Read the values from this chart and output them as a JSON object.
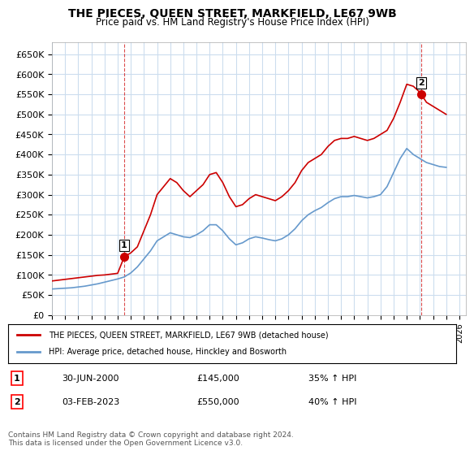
{
  "title": "THE PIECES, QUEEN STREET, MARKFIELD, LE67 9WB",
  "subtitle": "Price paid vs. HM Land Registry's House Price Index (HPI)",
  "red_label": "THE PIECES, QUEEN STREET, MARKFIELD, LE67 9WB (detached house)",
  "blue_label": "HPI: Average price, detached house, Hinckley and Bosworth",
  "annotation1_label": "1",
  "annotation1_date": "30-JUN-2000",
  "annotation1_price": "£145,000",
  "annotation1_hpi": "35% ↑ HPI",
  "annotation2_label": "2",
  "annotation2_date": "03-FEB-2023",
  "annotation2_price": "£550,000",
  "annotation2_hpi": "40% ↑ HPI",
  "footer": "Contains HM Land Registry data © Crown copyright and database right 2024.\nThis data is licensed under the Open Government Licence v3.0.",
  "ylim": [
    0,
    680000
  ],
  "yticks": [
    0,
    50000,
    100000,
    150000,
    200000,
    250000,
    300000,
    350000,
    400000,
    450000,
    500000,
    550000,
    600000,
    650000
  ],
  "ytick_labels": [
    "£0",
    "£50K",
    "£100K",
    "£150K",
    "£200K",
    "£250K",
    "£300K",
    "£350K",
    "£400K",
    "£450K",
    "£500K",
    "£550K",
    "£600K",
    "£650K"
  ],
  "xlim_start": 1995.0,
  "xlim_end": 2026.5,
  "red_color": "#cc0000",
  "blue_color": "#6699cc",
  "marker1_x": 2000.5,
  "marker1_y": 145000,
  "marker2_x": 2023.08,
  "marker2_y": 550000,
  "background_color": "#ffffff",
  "grid_color": "#ccddee",
  "red_line_data_x": [
    1995.0,
    1995.5,
    1996.0,
    1996.5,
    1997.0,
    1997.5,
    1998.0,
    1998.5,
    1999.0,
    1999.5,
    2000.0,
    2000.5,
    2001.0,
    2001.5,
    2002.0,
    2002.5,
    2003.0,
    2003.5,
    2004.0,
    2004.5,
    2005.0,
    2005.5,
    2006.0,
    2006.5,
    2007.0,
    2007.5,
    2008.0,
    2008.5,
    2009.0,
    2009.5,
    2010.0,
    2010.5,
    2011.0,
    2011.5,
    2012.0,
    2012.5,
    2013.0,
    2013.5,
    2014.0,
    2014.5,
    2015.0,
    2015.5,
    2016.0,
    2016.5,
    2017.0,
    2017.5,
    2018.0,
    2018.5,
    2019.0,
    2019.5,
    2020.0,
    2020.5,
    2021.0,
    2021.5,
    2022.0,
    2022.5,
    2023.0,
    2023.1,
    2023.5,
    2024.0,
    2024.5,
    2025.0
  ],
  "red_line_data_y": [
    85000,
    87000,
    89000,
    91000,
    93000,
    95000,
    97000,
    99000,
    100000,
    102000,
    104000,
    145000,
    155000,
    170000,
    210000,
    250000,
    300000,
    320000,
    340000,
    330000,
    310000,
    295000,
    310000,
    325000,
    350000,
    355000,
    330000,
    295000,
    270000,
    275000,
    290000,
    300000,
    295000,
    290000,
    285000,
    295000,
    310000,
    330000,
    360000,
    380000,
    390000,
    400000,
    420000,
    435000,
    440000,
    440000,
    445000,
    440000,
    435000,
    440000,
    450000,
    460000,
    490000,
    530000,
    575000,
    570000,
    555000,
    550000,
    530000,
    520000,
    510000,
    500000
  ],
  "blue_line_data_x": [
    1995.0,
    1995.5,
    1996.0,
    1996.5,
    1997.0,
    1997.5,
    1998.0,
    1998.5,
    1999.0,
    1999.5,
    2000.0,
    2000.5,
    2001.0,
    2001.5,
    2002.0,
    2002.5,
    2003.0,
    2003.5,
    2004.0,
    2004.5,
    2005.0,
    2005.5,
    2006.0,
    2006.5,
    2007.0,
    2007.5,
    2008.0,
    2008.5,
    2009.0,
    2009.5,
    2010.0,
    2010.5,
    2011.0,
    2011.5,
    2012.0,
    2012.5,
    2013.0,
    2013.5,
    2014.0,
    2014.5,
    2015.0,
    2015.5,
    2016.0,
    2016.5,
    2017.0,
    2017.5,
    2018.0,
    2018.5,
    2019.0,
    2019.5,
    2020.0,
    2020.5,
    2021.0,
    2021.5,
    2022.0,
    2022.5,
    2023.0,
    2023.5,
    2024.0,
    2024.5,
    2025.0
  ],
  "blue_line_data_y": [
    65000,
    66000,
    67000,
    68000,
    70000,
    72000,
    75000,
    78000,
    82000,
    86000,
    90000,
    95000,
    105000,
    120000,
    140000,
    160000,
    185000,
    195000,
    205000,
    200000,
    195000,
    193000,
    200000,
    210000,
    225000,
    225000,
    210000,
    190000,
    175000,
    180000,
    190000,
    195000,
    192000,
    188000,
    185000,
    190000,
    200000,
    215000,
    235000,
    250000,
    260000,
    268000,
    280000,
    290000,
    295000,
    295000,
    298000,
    295000,
    292000,
    295000,
    300000,
    320000,
    355000,
    390000,
    415000,
    400000,
    390000,
    380000,
    375000,
    370000,
    368000
  ]
}
